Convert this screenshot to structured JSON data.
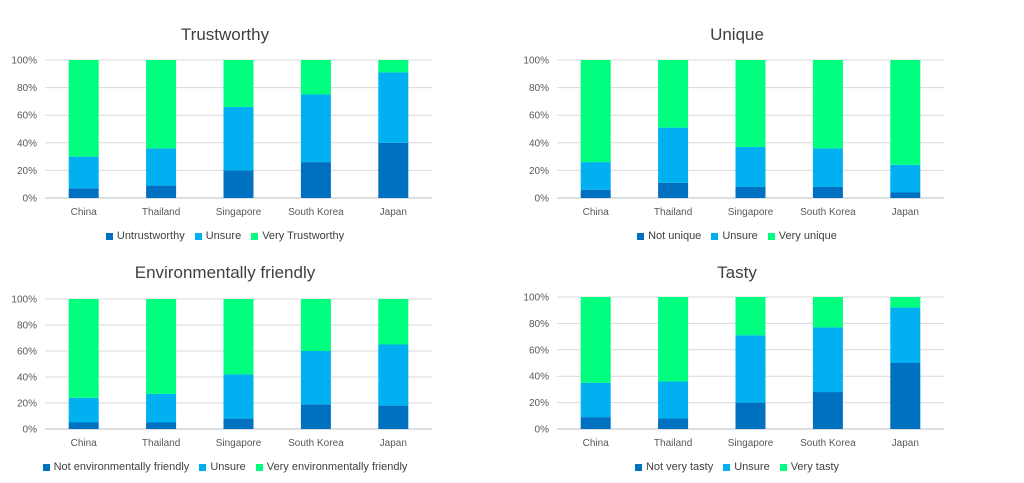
{
  "chart_data": [
    {
      "type": "bar",
      "stacked": "percent",
      "title": "Trustworthy",
      "categories": [
        "China",
        "Thailand",
        "Singapore",
        "South Korea",
        "Japan"
      ],
      "y_ticks": [
        "0%",
        "20%",
        "40%",
        "60%",
        "80%",
        "100%"
      ],
      "ylim": [
        0,
        100
      ],
      "grid": true,
      "legend_position": "bottom",
      "series": [
        {
          "name": "Untrustworthy",
          "values": [
            7,
            9,
            20,
            26,
            40
          ],
          "color": "#0070c0"
        },
        {
          "name": "Unsure",
          "values": [
            23,
            27,
            46,
            49,
            51
          ],
          "color": "#00b0f0"
        },
        {
          "name": "Very Trustworthy",
          "values": [
            70,
            64,
            34,
            25,
            9
          ],
          "color": "#00ff7f"
        }
      ]
    },
    {
      "type": "bar",
      "stacked": "percent",
      "title": "Unique",
      "categories": [
        "China",
        "Thailand",
        "Singapore",
        "South Korea",
        "Japan"
      ],
      "y_ticks": [
        "0%",
        "20%",
        "40%",
        "60%",
        "80%",
        "100%"
      ],
      "ylim": [
        0,
        100
      ],
      "grid": true,
      "legend_position": "bottom",
      "series": [
        {
          "name": "Not unique",
          "values": [
            6,
            11,
            8,
            8,
            4
          ],
          "color": "#0070c0"
        },
        {
          "name": "Unsure",
          "values": [
            20,
            40,
            29,
            28,
            20
          ],
          "color": "#00b0f0"
        },
        {
          "name": "Very unique",
          "values": [
            74,
            49,
            63,
            64,
            76
          ],
          "color": "#00ff7f"
        }
      ]
    },
    {
      "type": "bar",
      "stacked": "percent",
      "title": "Environmentally friendly",
      "categories": [
        "China",
        "Thailand",
        "Singapore",
        "South Korea",
        "Japan"
      ],
      "y_ticks": [
        "0%",
        "20%",
        "40%",
        "60%",
        "80%",
        "100%"
      ],
      "ylim": [
        0,
        100
      ],
      "grid": true,
      "legend_position": "bottom",
      "series": [
        {
          "name": "Not environmentally friendly",
          "values": [
            5,
            5,
            8,
            19,
            18
          ],
          "color": "#0070c0"
        },
        {
          "name": "Unsure",
          "values": [
            19,
            22,
            34,
            41,
            47
          ],
          "color": "#00b0f0"
        },
        {
          "name": "Very environmentally friendly",
          "values": [
            76,
            73,
            58,
            40,
            35
          ],
          "color": "#00ff7f"
        }
      ]
    },
    {
      "type": "bar",
      "stacked": "percent",
      "title": "Tasty",
      "categories": [
        "China",
        "Thailand",
        "Singapore",
        "South Korea",
        "Japan"
      ],
      "y_ticks": [
        "0%",
        "20%",
        "40%",
        "60%",
        "80%",
        "100%"
      ],
      "ylim": [
        0,
        100
      ],
      "grid": true,
      "legend_position": "bottom",
      "series": [
        {
          "name": "Not very tasty",
          "values": [
            9,
            8,
            20,
            28,
            50
          ],
          "color": "#0070c0"
        },
        {
          "name": "Unsure",
          "values": [
            26,
            28,
            51,
            49,
            42
          ],
          "color": "#00b0f0"
        },
        {
          "name": "Very tasty",
          "values": [
            65,
            64,
            29,
            23,
            8
          ],
          "color": "#00ff7f"
        }
      ]
    }
  ]
}
